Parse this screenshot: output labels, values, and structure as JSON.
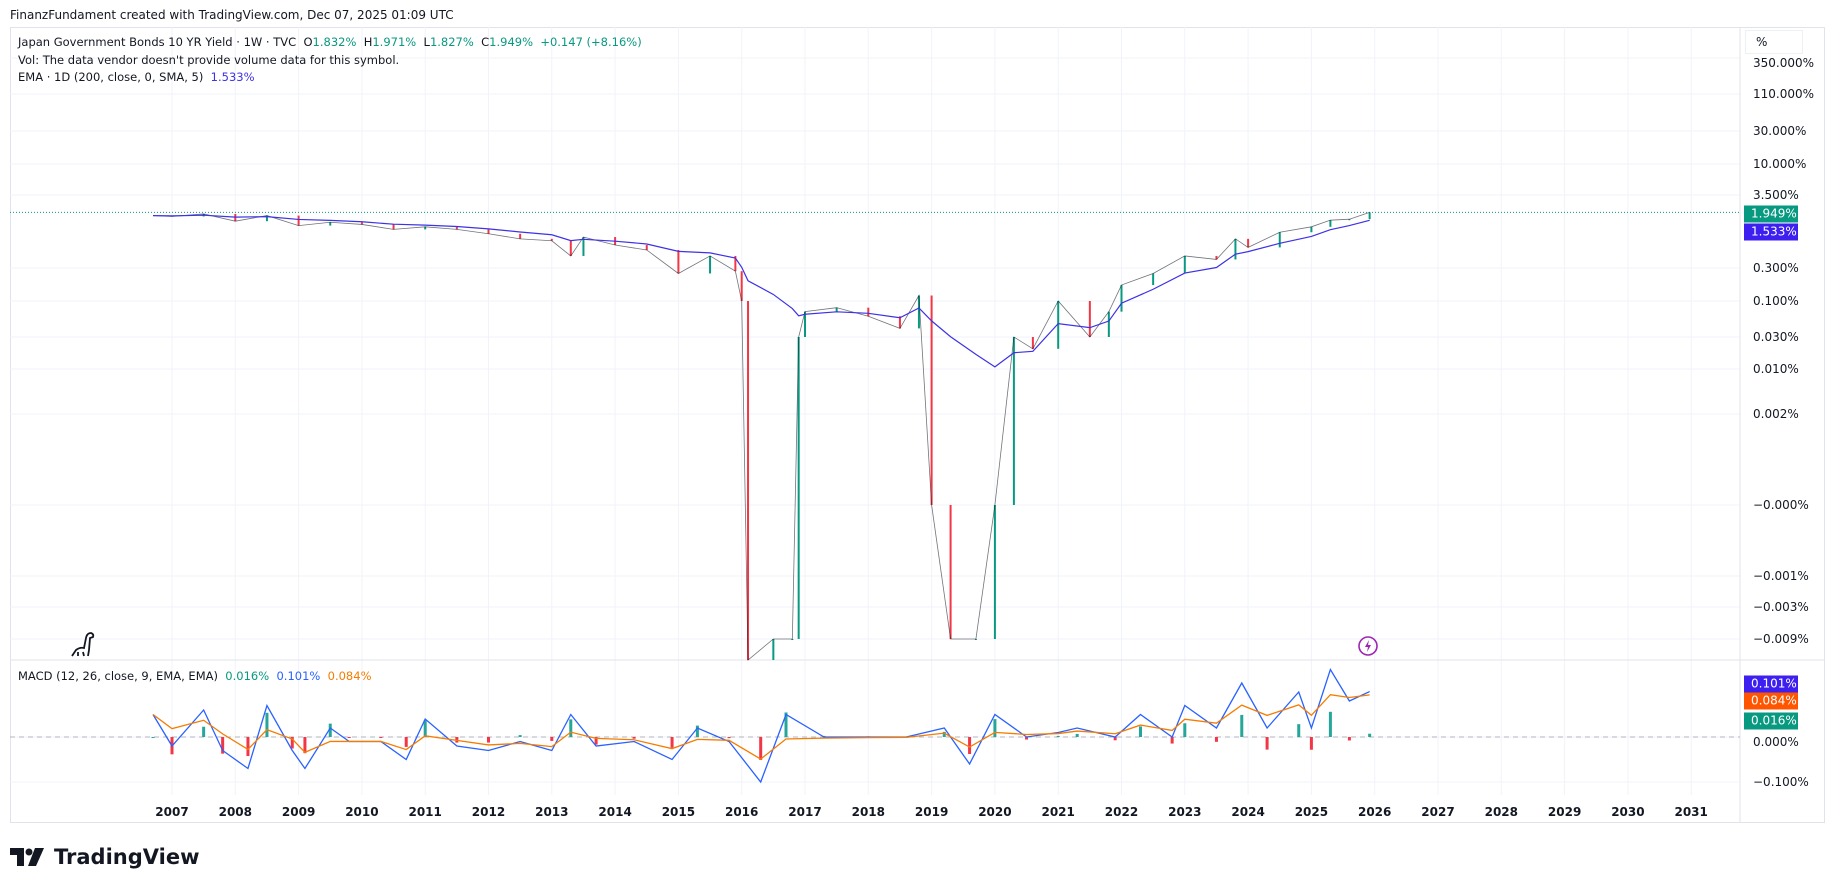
{
  "credit": "FinanzFundament created with TradingView.com, Dec 07, 2025 01:09 UTC",
  "legend": {
    "symbol": "Japan Government Bonds 10 YR Yield · 1W · TVC",
    "o_label": "O",
    "o": "1.832%",
    "h_label": "H",
    "h": "1.971%",
    "l_label": "L",
    "l": "1.827%",
    "c_label": "C",
    "c": "1.949%",
    "change": "+0.147 (+8.16%)",
    "vol": "Vol: The data vendor doesn't provide volume data for this symbol.",
    "ema": "EMA · 1D (200, close, 0, SMA, 5)",
    "ema_value": "1.533%",
    "macd": "MACD (12, 26, close, 9, EMA, EMA)",
    "macd_hist": "0.016%",
    "macd_line": "0.101%",
    "macd_signal": "0.084%"
  },
  "scale_button": "%",
  "logo_text": "TradingView",
  "colors": {
    "up": "#089981",
    "down": "#f23645",
    "ema": "#3d32e6",
    "macd": "#2962ff",
    "signal": "#f57c00",
    "last": "#089981"
  },
  "chart_data": [
    {
      "type": "line",
      "title": "Japan Government Bonds 10 YR Yield",
      "ylabel": "%",
      "y_ticks": [
        "350.000%",
        "110.000%",
        "30.000%",
        "10.000%",
        "3.500%",
        "0.300%",
        "0.100%",
        "0.030%",
        "0.010%",
        "0.002%",
        "−0.000%",
        "−0.001%",
        "−0.003%",
        "−0.009%"
      ],
      "x_ticks": [
        "2007",
        "2008",
        "2009",
        "2010",
        "2011",
        "2012",
        "2013",
        "2014",
        "2015",
        "2016",
        "2017",
        "2018",
        "2019",
        "2020",
        "2021",
        "2022",
        "2023",
        "2024",
        "2025",
        "2026",
        "2027",
        "2028",
        "2029",
        "2030",
        "2031"
      ],
      "last_price_label": "1.949%",
      "ema_label": "1.533%",
      "x": [
        2006.7,
        2007.0,
        2007.5,
        2008.0,
        2008.5,
        2009.0,
        2009.5,
        2010.0,
        2010.5,
        2011.0,
        2011.5,
        2012.0,
        2012.5,
        2013.0,
        2013.3,
        2013.5,
        2014.0,
        2014.5,
        2015.0,
        2015.5,
        2015.9,
        2016.0,
        2016.1,
        2016.5,
        2016.8,
        2016.9,
        2017.0,
        2017.5,
        2018.0,
        2018.5,
        2018.8,
        2019.0,
        2019.3,
        2019.7,
        2020.0,
        2020.3,
        2020.6,
        2021.0,
        2021.5,
        2021.8,
        2022.0,
        2022.5,
        2023.0,
        2023.5,
        2023.8,
        2024.0,
        2024.5,
        2025.0,
        2025.3,
        2025.6,
        2025.92
      ],
      "close": [
        1.75,
        1.7,
        1.85,
        1.45,
        1.75,
        1.25,
        1.4,
        1.3,
        1.1,
        1.2,
        1.1,
        0.95,
        0.8,
        0.75,
        0.45,
        0.85,
        0.65,
        0.55,
        0.25,
        0.45,
        0.27,
        0.1,
        -0.01,
        -0.009,
        -0.009,
        0.03,
        0.07,
        0.08,
        0.06,
        0.04,
        0.12,
        0.0,
        -0.009,
        -0.009,
        0.0,
        0.03,
        0.02,
        0.1,
        0.03,
        0.07,
        0.17,
        0.25,
        0.45,
        0.4,
        0.8,
        0.6,
        1.0,
        1.2,
        1.5,
        1.55,
        1.949
      ]
    },
    {
      "type": "line",
      "title": "MACD (12, 26, close, 9, EMA, EMA)",
      "y_ticks": [
        "0.000%",
        "−0.100%"
      ],
      "labels": {
        "macd": "0.101%",
        "signal": "0.084%",
        "histogram": "0.016%"
      },
      "x": [
        2006.7,
        2007.0,
        2007.5,
        2007.8,
        2008.2,
        2008.5,
        2008.9,
        2009.1,
        2009.5,
        2009.8,
        2010.3,
        2010.7,
        2011.0,
        2011.5,
        2012.0,
        2012.5,
        2013.0,
        2013.3,
        2013.7,
        2014.3,
        2014.9,
        2015.3,
        2015.8,
        2016.3,
        2016.7,
        2017.3,
        2018.0,
        2018.6,
        2019.2,
        2019.6,
        2020.0,
        2020.5,
        2021.0,
        2021.3,
        2021.9,
        2022.3,
        2022.8,
        2023.0,
        2023.5,
        2023.9,
        2024.3,
        2024.8,
        2025.0,
        2025.3,
        2025.6,
        2025.92
      ],
      "macd": [
        0.05,
        -0.02,
        0.06,
        -0.03,
        -0.07,
        0.07,
        -0.03,
        -0.07,
        0.02,
        -0.01,
        -0.01,
        -0.05,
        0.04,
        -0.02,
        -0.03,
        -0.01,
        -0.03,
        0.05,
        -0.02,
        -0.01,
        -0.05,
        0.02,
        -0.01,
        -0.1,
        0.05,
        0.0,
        0.0,
        0.0,
        0.02,
        -0.06,
        0.05,
        0.0,
        0.01,
        0.02,
        0.0,
        0.05,
        0.0,
        0.07,
        0.02,
        0.12,
        0.02,
        0.1,
        0.02,
        0.15,
        0.08,
        0.101
      ]
    }
  ]
}
